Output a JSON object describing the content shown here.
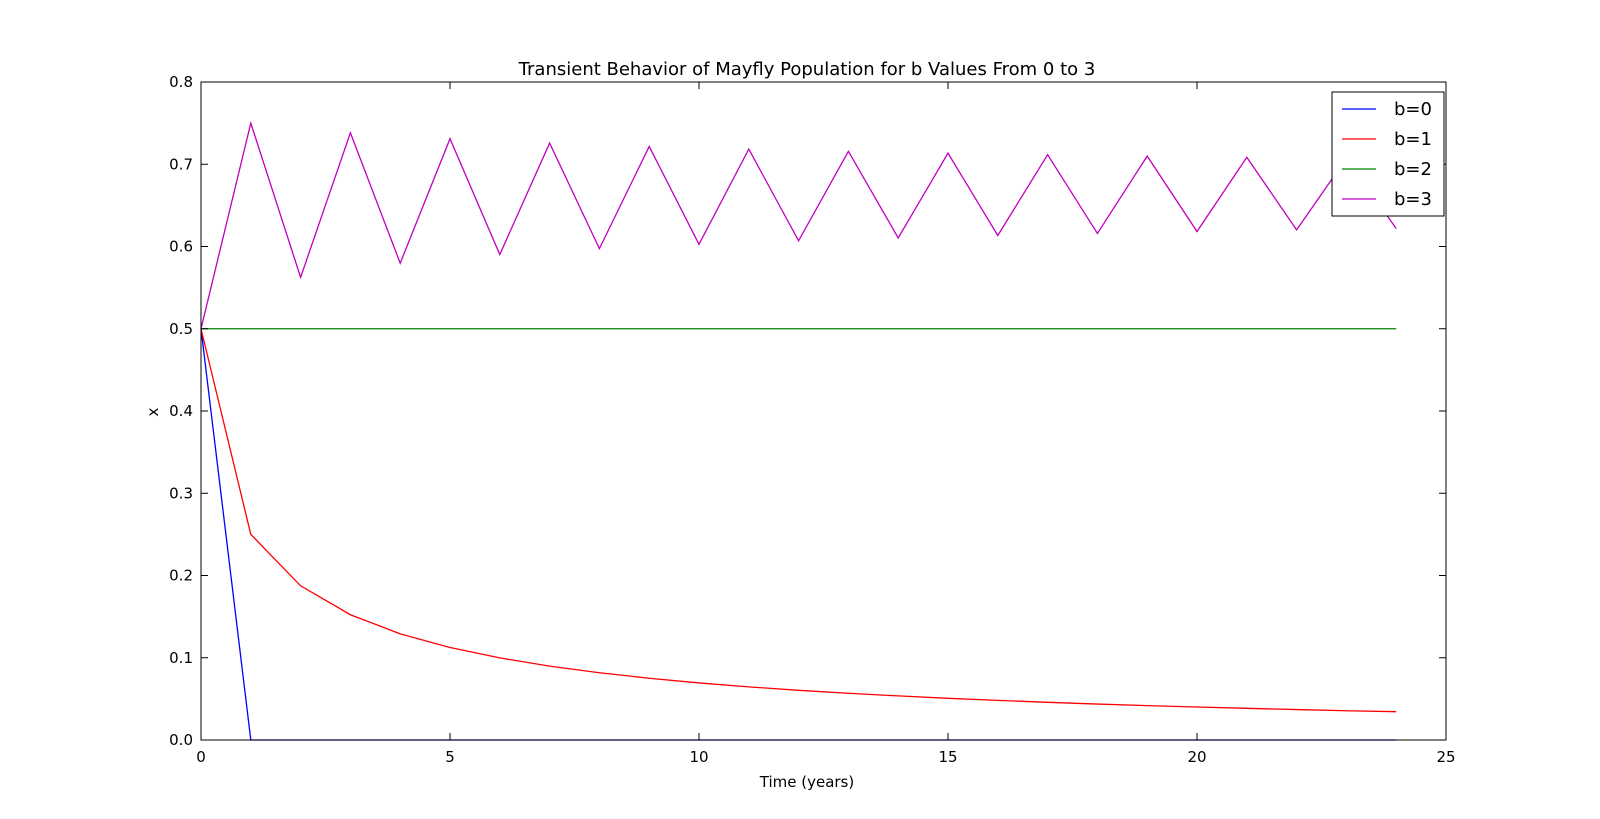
{
  "chart_data": {
    "type": "line",
    "title": "Transient Behavior of Mayfly Population for b Values From 0 to 3",
    "xlabel": "Time (years)",
    "ylabel": "x",
    "xlim": [
      0,
      25
    ],
    "ylim": [
      0,
      0.8
    ],
    "xticks": [
      "0",
      "5",
      "10",
      "15",
      "20",
      "25"
    ],
    "yticks": [
      "0.0",
      "0.1",
      "0.2",
      "0.3",
      "0.4",
      "0.5",
      "0.6",
      "0.7",
      "0.8"
    ],
    "grid": false,
    "legend_position": "top-right",
    "x": [
      0,
      1,
      2,
      3,
      4,
      5,
      6,
      7,
      8,
      9,
      10,
      11,
      12,
      13,
      14,
      15,
      16,
      17,
      18,
      19,
      20,
      21,
      22,
      23,
      24
    ],
    "series": [
      {
        "name": "b=0",
        "color": "#0000ff",
        "values": [
          0.5,
          0,
          0,
          0,
          0,
          0,
          0,
          0,
          0,
          0,
          0,
          0,
          0,
          0,
          0,
          0,
          0,
          0,
          0,
          0,
          0,
          0,
          0,
          0,
          0
        ]
      },
      {
        "name": "b=1",
        "color": "#ff0000",
        "values": [
          0.5,
          0.25,
          0.1875,
          0.1523,
          0.1291,
          0.1124,
          0.0998,
          0.0898,
          0.0818,
          0.0751,
          0.0694,
          0.0646,
          0.0604,
          0.0568,
          0.0536,
          0.0507,
          0.0482,
          0.0458,
          0.0437,
          0.0418,
          0.0401,
          0.0385,
          0.037,
          0.0356,
          0.0344
        ]
      },
      {
        "name": "b=2",
        "color": "#008000",
        "values": [
          0.5,
          0.5,
          0.5,
          0.5,
          0.5,
          0.5,
          0.5,
          0.5,
          0.5,
          0.5,
          0.5,
          0.5,
          0.5,
          0.5,
          0.5,
          0.5,
          0.5,
          0.5,
          0.5,
          0.5,
          0.5,
          0.5,
          0.5,
          0.5,
          0.5
        ]
      },
      {
        "name": "b=3",
        "color": "#bf00bf",
        "values": [
          0.5,
          0.75,
          0.5625,
          0.7383,
          0.5797,
          0.731,
          0.5902,
          0.7257,
          0.5974,
          0.7216,
          0.6027,
          0.7184,
          0.6069,
          0.7157,
          0.6104,
          0.7135,
          0.6134,
          0.7116,
          0.6159,
          0.7099,
          0.6182,
          0.7085,
          0.6202,
          0.7071,
          0.6219
        ]
      }
    ]
  }
}
